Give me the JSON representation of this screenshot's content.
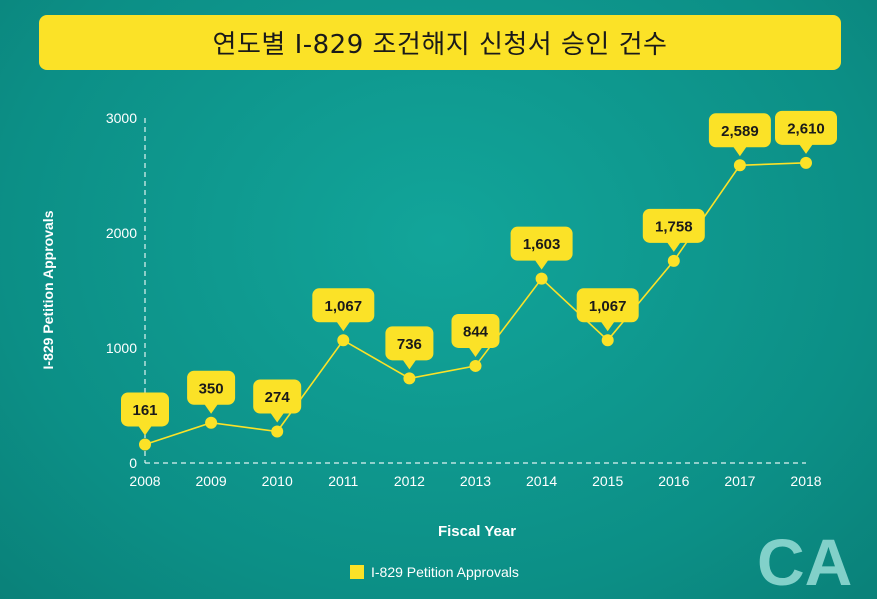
{
  "colors": {
    "background": "#0e9a90",
    "accent": "#fbe227",
    "text": "#ffffff"
  },
  "chart_data": {
    "type": "line",
    "title": "연도별 I-829 조건해지 신청서 승인 건수",
    "xlabel": "Fiscal Year",
    "ylabel": "I-829 Petition Approvals",
    "categories": [
      "2008",
      "2009",
      "2010",
      "2011",
      "2012",
      "2013",
      "2014",
      "2015",
      "2016",
      "2017",
      "2018"
    ],
    "series": [
      {
        "name": "I-829 Petition Approvals",
        "values": [
          161,
          350,
          274,
          1067,
          736,
          844,
          1603,
          1067,
          1758,
          2589,
          2610
        ],
        "labels": [
          "161",
          "350",
          "274",
          "1,067",
          "736",
          "844",
          "1,603",
          "1,067",
          "1,758",
          "2,589",
          "2,610"
        ],
        "color": "#fbe227"
      }
    ],
    "ylim": [
      0,
      3000
    ],
    "yticks": [
      "0",
      "1000",
      "2000",
      "3000"
    ],
    "grid": false,
    "legend": "bottom-center"
  },
  "logo": {
    "text": "CA"
  }
}
